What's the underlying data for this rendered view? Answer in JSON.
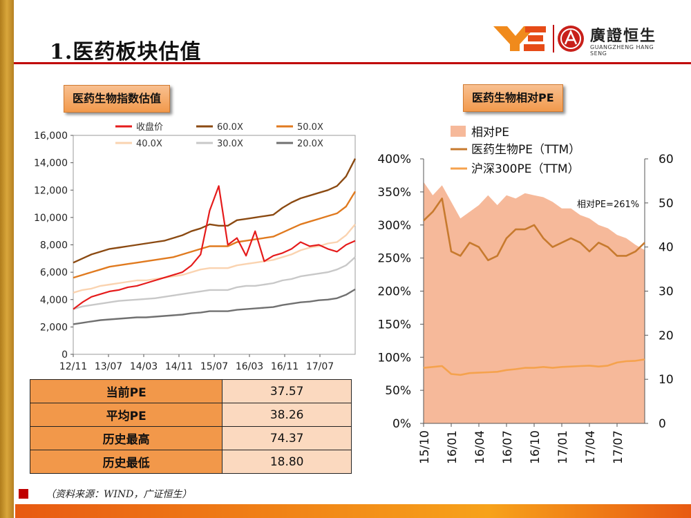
{
  "slide": {
    "title": "1.医药板块估值",
    "logo_cn": "廣證恒生",
    "logo_en": "GUANGZHENG HANG SENG",
    "source": "（资料来源：WIND，广证恒生）"
  },
  "left_panel": {
    "badge": "医药生物指数估值",
    "table": [
      {
        "label": "当前PE",
        "value": "37.57"
      },
      {
        "label": "平均PE",
        "value": "38.26"
      },
      {
        "label": "历史最高",
        "value": "74.37"
      },
      {
        "label": "历史最低",
        "value": "18.80"
      }
    ]
  },
  "right_panel": {
    "badge": "医药生物相对PE",
    "annotation": "相对PE=261%"
  },
  "colors": {
    "close": "#e51b1b",
    "band60": "#8b4a12",
    "band50": "#e07a1f",
    "band40": "#fad3b0",
    "band30": "#c8c8c8",
    "band20": "#707070",
    "relative_fill": "#f6b99a",
    "pharma_pe": "#c77a2e",
    "hs300_pe": "#f5a24d",
    "accent_red": "#c00000"
  },
  "chart_data": [
    {
      "type": "line",
      "ylim": [
        0,
        16000
      ],
      "yticks": [
        "0",
        "2,000",
        "4,000",
        "6,000",
        "8,000",
        "10,000",
        "12,000",
        "14,000",
        "16,000"
      ],
      "xticks": [
        "12/11",
        "13/07",
        "14/03",
        "14/11",
        "15/07",
        "16/03",
        "16/11",
        "17/07"
      ],
      "x": [
        "12/11",
        "13/01",
        "13/03",
        "13/05",
        "13/07",
        "13/09",
        "13/11",
        "14/01",
        "14/03",
        "14/05",
        "14/07",
        "14/09",
        "14/11",
        "15/01",
        "15/03",
        "15/05",
        "15/06",
        "15/07",
        "15/09",
        "15/11",
        "16/01",
        "16/03",
        "16/05",
        "16/07",
        "16/09",
        "16/11",
        "17/01",
        "17/03",
        "17/05",
        "17/07",
        "17/09",
        "17/10"
      ],
      "series": [
        {
          "name": "收盘价",
          "values": [
            3300,
            3800,
            4200,
            4400,
            4600,
            4700,
            4900,
            5000,
            5200,
            5400,
            5600,
            5800,
            6000,
            6500,
            7300,
            10500,
            12300,
            8000,
            8500,
            7200,
            9000,
            6800,
            7200,
            7400,
            7700,
            8200,
            7900,
            8000,
            7700,
            7500,
            8000,
            8300
          ]
        },
        {
          "name": "60.0X",
          "values": [
            6700,
            7000,
            7300,
            7500,
            7700,
            7800,
            7900,
            8000,
            8100,
            8200,
            8300,
            8500,
            8700,
            9000,
            9200,
            9500,
            9400,
            9400,
            9800,
            9900,
            10000,
            10100,
            10200,
            10700,
            11100,
            11400,
            11600,
            11800,
            12000,
            12300,
            13000,
            14300
          ]
        },
        {
          "name": "50.0X",
          "values": [
            5600,
            5800,
            6000,
            6200,
            6400,
            6500,
            6600,
            6700,
            6800,
            6900,
            7000,
            7100,
            7300,
            7500,
            7700,
            7900,
            7900,
            7900,
            8200,
            8300,
            8400,
            8500,
            8600,
            8900,
            9200,
            9500,
            9700,
            9900,
            10100,
            10300,
            10800,
            11900
          ]
        },
        {
          "name": "40.0X",
          "values": [
            4500,
            4700,
            4800,
            5000,
            5100,
            5200,
            5300,
            5400,
            5400,
            5500,
            5600,
            5700,
            5800,
            6000,
            6200,
            6300,
            6300,
            6300,
            6500,
            6600,
            6700,
            6800,
            6900,
            7100,
            7300,
            7600,
            7800,
            7900,
            8100,
            8200,
            8700,
            9500
          ]
        },
        {
          "name": "30.0X",
          "values": [
            3300,
            3500,
            3600,
            3700,
            3800,
            3900,
            3950,
            4000,
            4050,
            4100,
            4200,
            4300,
            4400,
            4500,
            4600,
            4700,
            4700,
            4700,
            4900,
            5000,
            5000,
            5100,
            5200,
            5400,
            5500,
            5700,
            5800,
            5900,
            6000,
            6200,
            6500,
            7100
          ]
        },
        {
          "name": "20.0X",
          "values": [
            2200,
            2300,
            2400,
            2500,
            2550,
            2600,
            2650,
            2700,
            2700,
            2750,
            2800,
            2850,
            2900,
            3000,
            3050,
            3150,
            3150,
            3150,
            3250,
            3300,
            3350,
            3400,
            3450,
            3600,
            3700,
            3800,
            3850,
            3950,
            4000,
            4100,
            4350,
            4750
          ]
        }
      ]
    },
    {
      "type": "area",
      "xticks": [
        "15/10",
        "16/01",
        "16/04",
        "16/07",
        "16/10",
        "17/01",
        "17/04",
        "17/07"
      ],
      "x": [
        "15/10",
        "15/11",
        "15/12",
        "16/01",
        "16/02",
        "16/03",
        "16/04",
        "16/05",
        "16/06",
        "16/07",
        "16/08",
        "16/09",
        "16/10",
        "16/11",
        "16/12",
        "17/01",
        "17/02",
        "17/03",
        "17/04",
        "17/05",
        "17/06",
        "17/07",
        "17/08",
        "17/09",
        "17/10"
      ],
      "ylim_left": [
        0,
        400
      ],
      "yticks_left": [
        "0%",
        "50%",
        "100%",
        "150%",
        "200%",
        "250%",
        "300%",
        "350%",
        "400%"
      ],
      "ylim_right": [
        0,
        60
      ],
      "yticks_right": [
        "0",
        "10",
        "20",
        "30",
        "40",
        "50",
        "60"
      ],
      "series": [
        {
          "name": "相对PE",
          "axis": "left",
          "values": [
            365,
            345,
            360,
            335,
            310,
            320,
            330,
            345,
            330,
            345,
            340,
            348,
            345,
            342,
            335,
            325,
            325,
            315,
            310,
            300,
            295,
            285,
            280,
            270,
            262
          ]
        },
        {
          "name": "医药生物PE（TTM）",
          "axis": "right",
          "values": [
            46,
            48,
            51,
            39,
            38,
            41,
            40,
            37,
            38,
            42,
            44,
            44,
            45,
            42,
            40,
            41,
            42,
            41,
            39,
            41,
            40,
            38,
            38,
            39,
            41
          ]
        },
        {
          "name": "沪深300PE（TTM）",
          "axis": "right",
          "values": [
            12.6,
            12.8,
            13.0,
            11.2,
            11.0,
            11.4,
            11.5,
            11.6,
            11.7,
            12.1,
            12.3,
            12.6,
            12.6,
            12.8,
            12.6,
            12.8,
            12.9,
            13.0,
            13.1,
            12.9,
            13.1,
            13.8,
            14.1,
            14.2,
            14.5
          ]
        }
      ]
    }
  ]
}
